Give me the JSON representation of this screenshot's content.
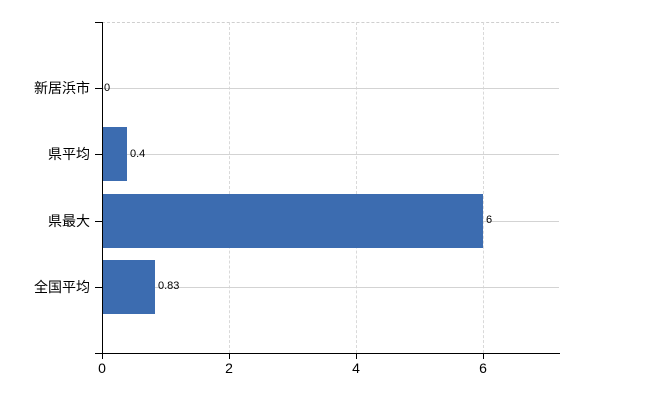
{
  "chart_data": {
    "type": "bar",
    "orientation": "horizontal",
    "categories": [
      "新居浜市",
      "県平均",
      "県最大",
      "全国平均"
    ],
    "values": [
      0,
      0.4,
      6,
      0.83
    ],
    "value_labels": [
      "0",
      "0.4",
      "6",
      "0.83"
    ],
    "x_ticks": [
      0,
      2,
      4,
      6
    ],
    "x_tick_labels": [
      "0",
      "2",
      "4",
      "6"
    ],
    "xlim": [
      0,
      7.2
    ],
    "grid": true,
    "legend": false,
    "bar_color": "#3c6cb0",
    "axis_color": "#000000",
    "grid_color_horizontal": "#d3d3d3",
    "grid_color_vertical": "#d9d9d9",
    "top_border_color": "#cfcfcf",
    "text_color": "#000000"
  }
}
